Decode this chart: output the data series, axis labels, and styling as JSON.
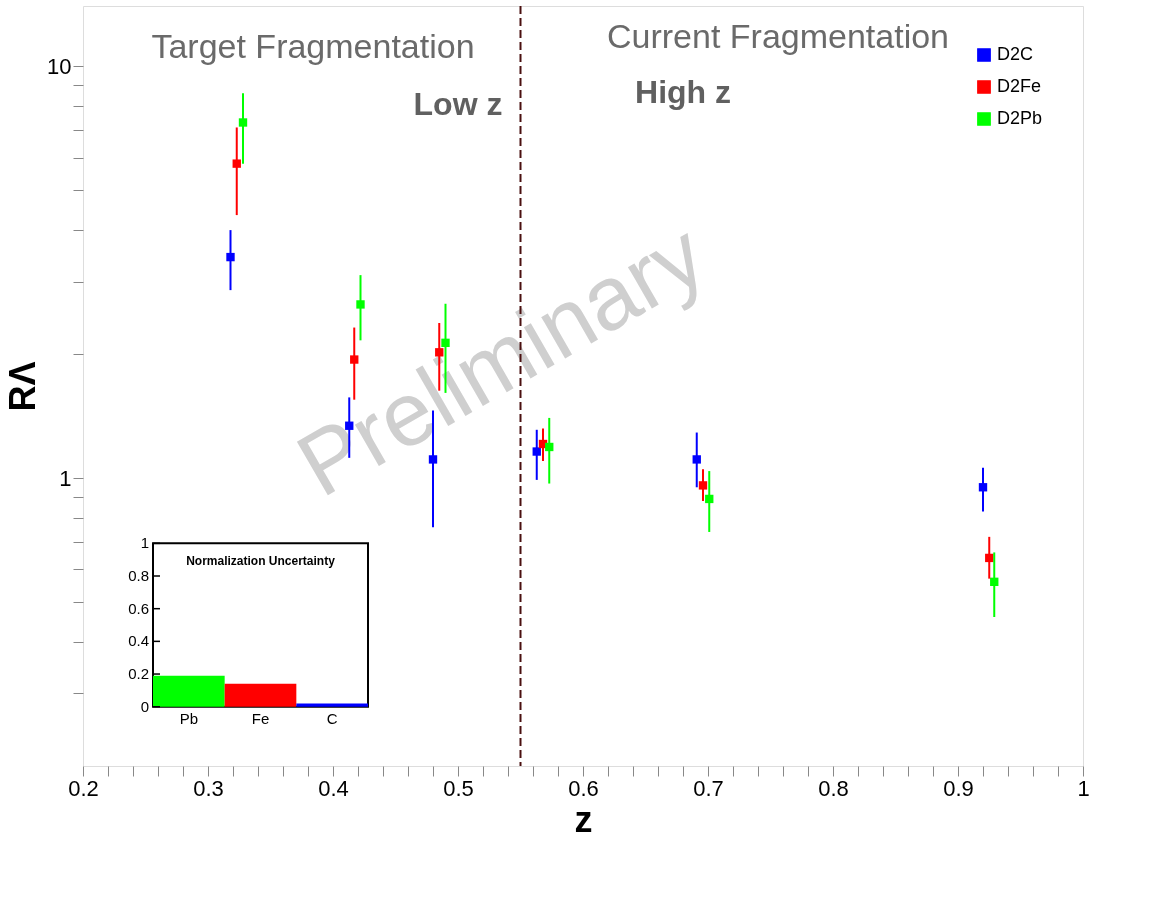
{
  "chart_data": [
    {
      "type": "scatter",
      "xlabel": "z",
      "ylabel": "RΛ",
      "log": "y",
      "marker": "square",
      "legend": "top right",
      "grid": false,
      "xlim": [
        0.2,
        1
      ],
      "ylim": [
        0.2,
        14
      ],
      "xticks": [
        0.2,
        {
          "value": 0.22,
          "label": null
        },
        {
          "value": 0.24,
          "label": null
        },
        {
          "value": 0.26,
          "label": null
        },
        {
          "value": 0.28,
          "label": null
        },
        0.3,
        {
          "value": 0.32,
          "label": null
        },
        {
          "value": 0.34,
          "label": null
        },
        {
          "value": 0.36,
          "label": null
        },
        {
          "value": 0.38,
          "label": null
        },
        0.4,
        {
          "value": 0.42,
          "label": null
        },
        {
          "value": 0.44,
          "label": null
        },
        {
          "value": 0.46,
          "label": null
        },
        {
          "value": 0.48,
          "label": null
        },
        0.5,
        {
          "value": 0.52,
          "label": null
        },
        {
          "value": 0.54,
          "label": null
        },
        {
          "value": 0.56,
          "label": null
        },
        {
          "value": 0.58,
          "label": null
        },
        0.6,
        {
          "value": 0.62,
          "label": null
        },
        {
          "value": 0.64,
          "label": null
        },
        {
          "value": 0.66,
          "label": null
        },
        {
          "value": 0.68,
          "label": null
        },
        0.7,
        {
          "value": 0.72,
          "label": null
        },
        {
          "value": 0.74,
          "label": null
        },
        {
          "value": 0.76,
          "label": null
        },
        {
          "value": 0.78,
          "label": null
        },
        0.8,
        {
          "value": 0.82,
          "label": null
        },
        {
          "value": 0.84,
          "label": null
        },
        {
          "value": 0.86,
          "label": null
        },
        {
          "value": 0.88,
          "label": null
        },
        0.9,
        {
          "value": 0.92,
          "label": null
        },
        {
          "value": 0.94,
          "label": null
        },
        {
          "value": 0.96,
          "label": null
        },
        {
          "value": 0.98,
          "label": null
        },
        1
      ],
      "yticks": [
        {
          "value": 0.3,
          "label": null
        },
        {
          "value": 0.4,
          "label": null
        },
        {
          "value": 0.5,
          "label": null
        },
        {
          "value": 0.6,
          "label": null
        },
        {
          "value": 0.7,
          "label": null
        },
        {
          "value": 0.8,
          "label": null
        },
        {
          "value": 0.9,
          "label": null
        },
        1,
        {
          "value": 2,
          "label": null
        },
        {
          "value": 3,
          "label": null
        },
        {
          "value": 4,
          "label": null
        },
        {
          "value": 5,
          "label": null
        },
        {
          "value": 6,
          "label": null
        },
        {
          "value": 7,
          "label": null
        },
        {
          "value": 8,
          "label": null
        },
        {
          "value": 9,
          "label": null
        },
        10
      ],
      "series": [
        {
          "name": "D2C",
          "color": "#0000ff",
          "x": [
            0.318,
            0.413,
            0.48,
            0.563,
            0.691,
            0.92
          ],
          "values": [
            3.44,
            1.34,
            1.11,
            1.16,
            1.11,
            0.95
          ],
          "errors": [
            [
              2.86,
              4.0
            ],
            [
              1.12,
              1.57
            ],
            [
              0.76,
              1.46
            ],
            [
              0.99,
              1.31
            ],
            [
              0.95,
              1.29
            ],
            [
              0.83,
              1.06
            ]
          ]
        },
        {
          "name": "D2Fe",
          "color": "#ff0000",
          "x": [
            0.323,
            0.417,
            0.485,
            0.568,
            0.696,
            0.925
          ],
          "values": [
            5.8,
            1.94,
            2.02,
            1.21,
            0.96,
            0.64
          ],
          "errors": [
            [
              4.35,
              7.1
            ],
            [
              1.55,
              2.32
            ],
            [
              1.63,
              2.38
            ],
            [
              1.1,
              1.32
            ],
            [
              0.88,
              1.05
            ],
            [
              0.57,
              0.72
            ]
          ]
        },
        {
          "name": "D2Pb",
          "color": "#00ff00",
          "x": [
            0.328,
            0.422,
            0.49,
            0.573,
            0.701,
            0.929
          ],
          "values": [
            7.3,
            2.64,
            2.13,
            1.19,
            0.89,
            0.56
          ],
          "errors": [
            [
              5.8,
              8.6
            ],
            [
              2.16,
              3.11
            ],
            [
              1.61,
              2.65
            ],
            [
              0.97,
              1.4
            ],
            [
              0.74,
              1.04
            ],
            [
              0.46,
              0.66
            ]
          ]
        }
      ],
      "ref_lines": [
        {
          "axis": "x",
          "value": 0.55,
          "color": "#4a1010",
          "line_style": "dashed"
        }
      ],
      "annotations": [
        "Target Fragmentation",
        "Current Fragmentation",
        "Low z",
        "High z",
        "Preliminary"
      ]
    },
    {
      "type": "bar",
      "title": "Normalization Uncertainty",
      "categories": [
        "Pb",
        "Fe",
        "C"
      ],
      "values": [
        0.19,
        0.14,
        0.02
      ],
      "colors": [
        "#00ff00",
        "#ff0000",
        "#0000ff"
      ],
      "ylim": [
        0,
        1
      ],
      "yticks": [
        0,
        0.2,
        0.4,
        0.6,
        0.8,
        1
      ]
    }
  ]
}
